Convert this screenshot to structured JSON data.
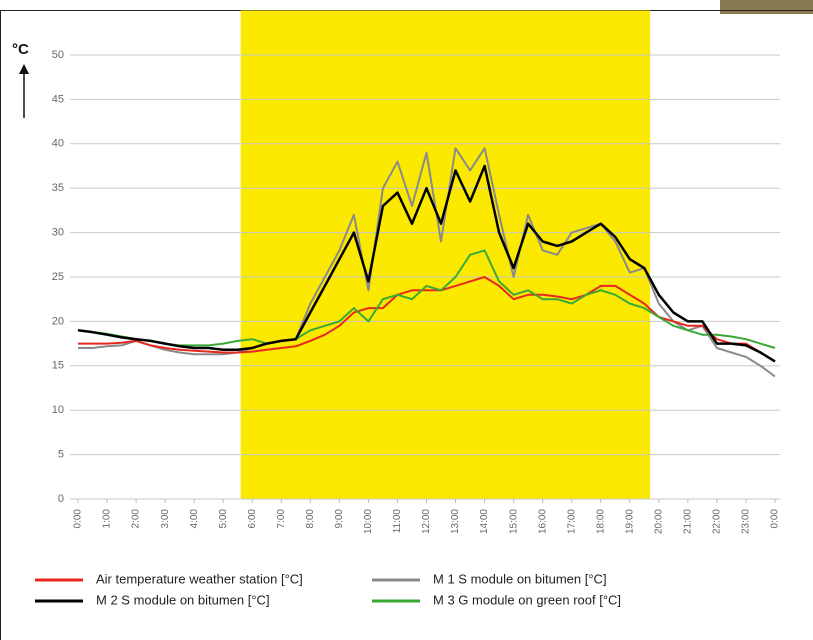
{
  "chart_data": {
    "type": "line",
    "y_label": "°C",
    "x": [
      0,
      0.5,
      1,
      1.5,
      2,
      2.5,
      3,
      3.5,
      4,
      4.5,
      5,
      5.5,
      6,
      6.5,
      7,
      7.5,
      8,
      8.5,
      9,
      9.5,
      10,
      10.5,
      11,
      11.5,
      12,
      12.5,
      13,
      13.5,
      14,
      14.5,
      15,
      15.5,
      16,
      16.5,
      17,
      17.5,
      18,
      18.5,
      19,
      19.5,
      20,
      20.5,
      21,
      21.5,
      22,
      22.5,
      23,
      23.5,
      24
    ],
    "series": [
      {
        "name": "Air temperature weather station [°C]",
        "color": "#e8281e",
        "values": [
          17.5,
          17.5,
          17.5,
          17.6,
          17.8,
          17.3,
          17,
          16.8,
          16.7,
          16.6,
          16.5,
          16.5,
          16.6,
          16.8,
          17,
          17.2,
          17.8,
          18.5,
          19.5,
          21,
          21.5,
          21.5,
          23,
          23.5,
          23.5,
          23.5,
          24,
          24.5,
          25,
          24,
          22.5,
          23,
          23,
          22.8,
          22.5,
          23,
          24,
          24,
          23,
          22,
          20.5,
          20,
          19.5,
          19.5,
          18,
          17.5,
          17.5,
          16.5,
          15.5
        ]
      },
      {
        "name": "M 1 S module on bitumen [°C]",
        "color": "#8a8a8a",
        "values": [
          17,
          17,
          17.2,
          17.3,
          17.8,
          17.3,
          16.8,
          16.5,
          16.3,
          16.3,
          16.3,
          16.5,
          17,
          17.5,
          17.8,
          18,
          22,
          25,
          28,
          32,
          23.5,
          35,
          38,
          33,
          39,
          29,
          39.5,
          37,
          39.5,
          32,
          25,
          32,
          28,
          27.5,
          30,
          30.5,
          31,
          29,
          25.5,
          26,
          22,
          20,
          19,
          19.5,
          17,
          16.5,
          16,
          15,
          13.8
        ]
      },
      {
        "name": "M 2 S module on bitumen [°C]",
        "color": "#000000",
        "values": [
          19,
          18.8,
          18.5,
          18.2,
          18,
          17.8,
          17.5,
          17.2,
          17,
          17,
          16.8,
          16.8,
          17,
          17.5,
          17.8,
          18,
          21,
          24,
          27,
          30,
          24.5,
          33,
          34.5,
          31,
          35,
          31,
          37,
          33.5,
          37.5,
          30,
          26,
          31,
          29,
          28.5,
          29,
          30,
          31,
          29.5,
          27,
          26,
          23,
          21,
          20,
          20,
          17.5,
          17.5,
          17.3,
          16.5,
          15.5
        ]
      },
      {
        "name": "M 3 G module on green roof [°C]",
        "color": "#3aa935",
        "values": [
          19,
          18.8,
          18.6,
          18.3,
          18,
          17.8,
          17.5,
          17.3,
          17.3,
          17.3,
          17.5,
          17.8,
          18,
          17.5,
          17.8,
          18,
          19,
          19.5,
          20,
          21.5,
          20,
          22.5,
          23,
          22.5,
          24,
          23.5,
          25,
          27.5,
          28,
          24.5,
          23,
          23.5,
          22.5,
          22.5,
          22,
          23,
          23.5,
          23,
          22,
          21.5,
          20.5,
          19.5,
          19,
          18.5,
          18.5,
          18.3,
          18,
          17.5,
          17
        ]
      }
    ],
    "shaded_range": [
      5.6,
      19.7
    ],
    "shade_color": "#fbe900",
    "xlim": [
      0,
      24
    ],
    "xticks": [
      {
        "value": 0,
        "label": "0:00"
      },
      {
        "value": 1,
        "label": "1:00"
      },
      {
        "value": 2,
        "label": "2:00"
      },
      {
        "value": 3,
        "label": "3:00"
      },
      {
        "value": 4,
        "label": "4:00"
      },
      {
        "value": 5,
        "label": "5:00"
      },
      {
        "value": 6,
        "label": "6:00"
      },
      {
        "value": 7,
        "label": "7:00"
      },
      {
        "value": 8,
        "label": "8:00"
      },
      {
        "value": 9,
        "label": "9:00"
      },
      {
        "value": 10,
        "label": "10:00"
      },
      {
        "value": 11,
        "label": "11:00"
      },
      {
        "value": 12,
        "label": "12:00"
      },
      {
        "value": 13,
        "label": "13:00"
      },
      {
        "value": 14,
        "label": "14:00"
      },
      {
        "value": 15,
        "label": "15:00"
      },
      {
        "value": 16,
        "label": "16:00"
      },
      {
        "value": 17,
        "label": "17:00"
      },
      {
        "value": 18,
        "label": "18:00"
      },
      {
        "value": 19,
        "label": "19:00"
      },
      {
        "value": 20,
        "label": "20:00"
      },
      {
        "value": 21,
        "label": "21:00"
      },
      {
        "value": 22,
        "label": "22:00"
      },
      {
        "value": 23,
        "label": "23:00"
      },
      {
        "value": 24,
        "label": "0:00"
      }
    ],
    "ylim": [
      0,
      50
    ],
    "yticks": [
      0,
      5,
      10,
      15,
      20,
      25,
      30,
      35,
      40,
      45,
      50
    ],
    "grid": true,
    "legend": "bottom"
  }
}
